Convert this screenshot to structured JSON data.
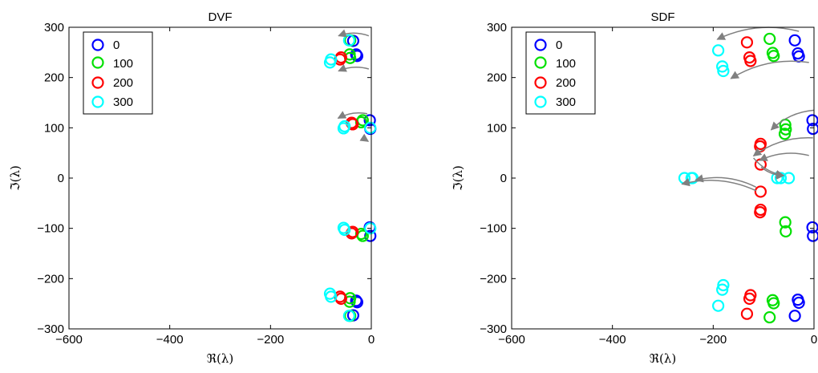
{
  "chart_data": [
    {
      "type": "scatter",
      "title": "DVF",
      "xlabel": "ℜ(λ)",
      "ylabel": "ℑ(λ)",
      "xlim": [
        -600,
        0
      ],
      "ylim": [
        -300,
        300
      ],
      "x_ticks": [
        -600,
        -400,
        -200,
        0
      ],
      "y_ticks": [
        -300,
        -200,
        -100,
        0,
        100,
        200,
        300
      ],
      "x_tick_labels": [
        "−600",
        "−400",
        "−200",
        "0"
      ],
      "y_tick_labels": [
        "−300",
        "−200",
        "−100",
        "0",
        "100",
        "200",
        "300"
      ],
      "legend": {
        "position": "top-left",
        "entries": [
          "0",
          "100",
          "200",
          "300"
        ]
      },
      "series": [
        {
          "name": "0",
          "color": "#0000ff",
          "points": [
            [
              -36,
              273
            ],
            [
              -30,
              246
            ],
            [
              -28,
              243
            ],
            [
              -3,
              115
            ],
            [
              -2,
              98
            ],
            [
              -3,
              -98
            ],
            [
              -2,
              -115
            ],
            [
              -30,
              -244
            ],
            [
              -28,
              -247
            ],
            [
              -36,
              -273
            ]
          ]
        },
        {
          "name": "100",
          "color": "#00e000",
          "points": [
            [
              -42,
              274
            ],
            [
              -43,
              246
            ],
            [
              -42,
              239
            ],
            [
              -17,
              115
            ],
            [
              -20,
              111
            ],
            [
              -17,
              -115
            ],
            [
              -20,
              -111
            ],
            [
              -42,
              -239
            ],
            [
              -43,
              -246
            ],
            [
              -42,
              -274
            ]
          ]
        },
        {
          "name": "200",
          "color": "#ff0000",
          "points": [
            [
              -60,
              240
            ],
            [
              -62,
              236
            ],
            [
              -37,
              107
            ],
            [
              -39,
              110
            ],
            [
              -37,
              -107
            ],
            [
              -39,
              -110
            ],
            [
              -60,
              -240
            ],
            [
              -62,
              -236
            ]
          ]
        },
        {
          "name": "300",
          "color": "#00ffff",
          "points": [
            [
              -44,
              274
            ],
            [
              -80,
              236
            ],
            [
              -82,
              230
            ],
            [
              -53,
              103
            ],
            [
              -55,
              99
            ],
            [
              -2,
              100
            ],
            [
              -53,
              -103
            ],
            [
              -55,
              -99
            ],
            [
              -2,
              -100
            ],
            [
              -80,
              -236
            ],
            [
              -82,
              -230
            ],
            [
              -44,
              -274
            ]
          ]
        }
      ],
      "arrows": [
        {
          "from": [
            -5,
            283
          ],
          "to": [
            -65,
            283
          ]
        },
        {
          "from": [
            -5,
            217
          ],
          "to": [
            -65,
            213
          ]
        },
        {
          "from": [
            -8,
            128
          ],
          "to": [
            -66,
            119
          ]
        },
        {
          "from": [
            -15,
            85
          ],
          "to": [
            -6,
            73
          ]
        }
      ]
    },
    {
      "type": "scatter",
      "title": "SDF",
      "xlabel": "ℜ(λ)",
      "ylabel": "ℑ(λ)",
      "xlim": [
        -600,
        0
      ],
      "ylim": [
        -300,
        300
      ],
      "x_ticks": [
        -600,
        -400,
        -200,
        0
      ],
      "y_ticks": [
        -300,
        -200,
        -100,
        0,
        100,
        200,
        300
      ],
      "x_tick_labels": [
        "−600",
        "−400",
        "−200",
        "0"
      ],
      "y_tick_labels": [
        "−300",
        "−200",
        "−100",
        "0",
        "100",
        "200",
        "300"
      ],
      "legend": {
        "position": "top-left",
        "entries": [
          "0",
          "100",
          "200",
          "300"
        ]
      },
      "series": [
        {
          "name": "0",
          "color": "#0000ff",
          "points": [
            [
              -38,
              274
            ],
            [
              -32,
              248
            ],
            [
              -30,
              242
            ],
            [
              -3,
              115
            ],
            [
              -2,
              98
            ],
            [
              -3,
              -98
            ],
            [
              -2,
              -115
            ],
            [
              -32,
              -242
            ],
            [
              -30,
              -248
            ],
            [
              -38,
              -274
            ]
          ]
        },
        {
          "name": "100",
          "color": "#00e000",
          "points": [
            [
              -88,
              277
            ],
            [
              -82,
              249
            ],
            [
              -80,
              243
            ],
            [
              -57,
              106
            ],
            [
              -56,
              97
            ],
            [
              -58,
              88
            ],
            [
              -57,
              -88
            ],
            [
              -56,
              -106
            ],
            [
              -82,
              -243
            ],
            [
              -80,
              -249
            ],
            [
              -88,
              -277
            ]
          ]
        },
        {
          "name": "200",
          "color": "#ff0000",
          "points": [
            [
              -133,
              270
            ],
            [
              -128,
              240
            ],
            [
              -126,
              233
            ],
            [
              -106,
              68
            ],
            [
              -107,
              63
            ],
            [
              -106,
              27
            ],
            [
              -106,
              -27
            ],
            [
              -106,
              -63
            ],
            [
              -107,
              -68
            ],
            [
              -126,
              -233
            ],
            [
              -128,
              -240
            ],
            [
              -133,
              -270
            ]
          ]
        },
        {
          "name": "300",
          "color": "#00ffff",
          "points": [
            [
              -190,
              254
            ],
            [
              -182,
              222
            ],
            [
              -180,
              213
            ],
            [
              -257,
              0
            ],
            [
              -243,
              0
            ],
            [
              -241,
              0
            ],
            [
              -73,
              0
            ],
            [
              -66,
              0
            ],
            [
              -50,
              0
            ],
            [
              -180,
              -213
            ],
            [
              -182,
              -222
            ],
            [
              -190,
              -254
            ]
          ]
        }
      ],
      "arrows": [
        {
          "from": [
            -30,
            292
          ],
          "to": [
            -192,
            276
          ]
        },
        {
          "from": [
            -10,
            230
          ],
          "to": [
            -165,
            198
          ]
        },
        {
          "from": [
            0,
            135
          ],
          "to": [
            -85,
            96
          ]
        },
        {
          "from": [
            -2,
            80
          ],
          "to": [
            -120,
            44
          ]
        },
        {
          "from": [
            -10,
            45
          ],
          "to": [
            -108,
            35
          ]
        },
        {
          "from": [
            -105,
            22
          ],
          "to": [
            -60,
            5
          ]
        },
        {
          "from": [
            -120,
            40
          ],
          "to": [
            -60,
            5
          ]
        },
        {
          "from": [
            -115,
            -18
          ],
          "to": [
            -235,
            -4
          ]
        },
        {
          "from": [
            -115,
            -25
          ],
          "to": [
            -262,
            -12
          ]
        }
      ]
    }
  ]
}
